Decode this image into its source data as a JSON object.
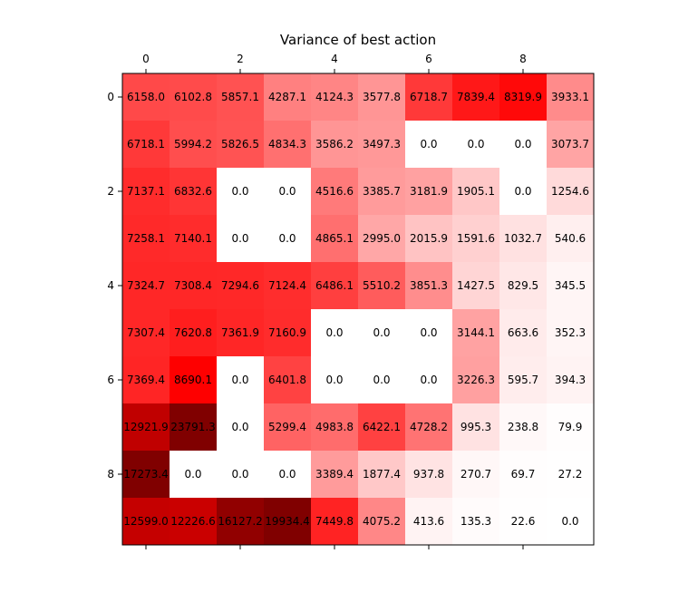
{
  "chart_data": {
    "type": "heatmap",
    "title": "Variance of best action",
    "colormap": "seismic",
    "vmin": -17273.4,
    "vmax": 17273.4,
    "x_ticks": [
      0,
      2,
      4,
      6,
      8
    ],
    "y_ticks": [
      0,
      2,
      4,
      6,
      8
    ],
    "x_tick_position": "top",
    "grid": false,
    "values": [
      [
        6158.0,
        6102.8,
        5857.1,
        4287.1,
        4124.3,
        3577.8,
        6718.7,
        7839.4,
        8319.9,
        3933.1
      ],
      [
        6718.1,
        5994.2,
        5826.5,
        4834.3,
        3586.2,
        3497.3,
        0.0,
        0.0,
        0.0,
        3073.7
      ],
      [
        7137.1,
        6832.6,
        0.0,
        0.0,
        4516.6,
        3385.7,
        3181.9,
        1905.1,
        0.0,
        1254.6
      ],
      [
        7258.1,
        7140.1,
        0.0,
        0.0,
        4865.1,
        2995.0,
        2015.9,
        1591.6,
        1032.7,
        540.6
      ],
      [
        7324.7,
        7308.4,
        7294.6,
        7124.4,
        6486.1,
        5510.2,
        3851.3,
        1427.5,
        829.5,
        345.5
      ],
      [
        7307.4,
        7620.8,
        7361.9,
        7160.9,
        0.0,
        0.0,
        0.0,
        3144.1,
        663.6,
        352.3
      ],
      [
        7369.4,
        8690.1,
        0.0,
        6401.8,
        0.0,
        0.0,
        0.0,
        3226.3,
        595.7,
        394.3
      ],
      [
        12921.9,
        23791.3,
        0.0,
        5299.4,
        4983.8,
        6422.1,
        4728.2,
        995.3,
        238.8,
        79.9
      ],
      [
        17273.4,
        0.0,
        0.0,
        0.0,
        3389.4,
        1877.4,
        937.8,
        270.7,
        69.7,
        27.2
      ],
      [
        12599.0,
        12226.6,
        16127.2,
        19934.4,
        7449.8,
        4075.2,
        413.6,
        135.3,
        22.6,
        0.0
      ]
    ]
  }
}
